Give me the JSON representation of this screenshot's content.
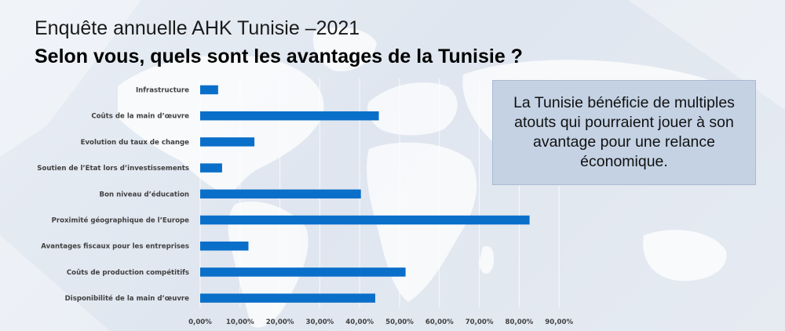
{
  "header": {
    "title_line1": "Enquête annuelle AHK Tunisie –2021",
    "title_line2": "Selon vous, quels sont les avantages de la Tunisie ?"
  },
  "callout": {
    "text": "La Tunisie bénéficie de multiples atouts qui pourraient jouer à son avantage pour une relance économique."
  },
  "colors": {
    "bar": "#0a6fc9",
    "grid": "#ffffff",
    "callout_bg": "#c4d2e4"
  },
  "chart_data": {
    "type": "bar",
    "orientation": "horizontal",
    "title": "",
    "xlabel": "",
    "ylabel": "",
    "categories": [
      "Infrastructure",
      "Coûts de la main d’œuvre",
      "Evolution du taux de change",
      "Soutien de l’Etat lors d’investissements",
      "Bon niveau d’éducation",
      "Proximité géographique de l’Europe",
      "Avantages fiscaux pour les entreprises",
      "Coûts de production compétitifs",
      "Disponibilité de la main d’œuvre"
    ],
    "values": [
      4.5,
      44.8,
      13.6,
      5.5,
      40.3,
      82.6,
      12.1,
      51.5,
      43.9
    ],
    "xlim": [
      0,
      90
    ],
    "xticks": [
      "0,00%",
      "10,00%",
      "20,00%",
      "30,00%",
      "40,00%",
      "50,00%",
      "60,00%",
      "70,00%",
      "80,00%",
      "90,00%"
    ],
    "grid": true
  }
}
